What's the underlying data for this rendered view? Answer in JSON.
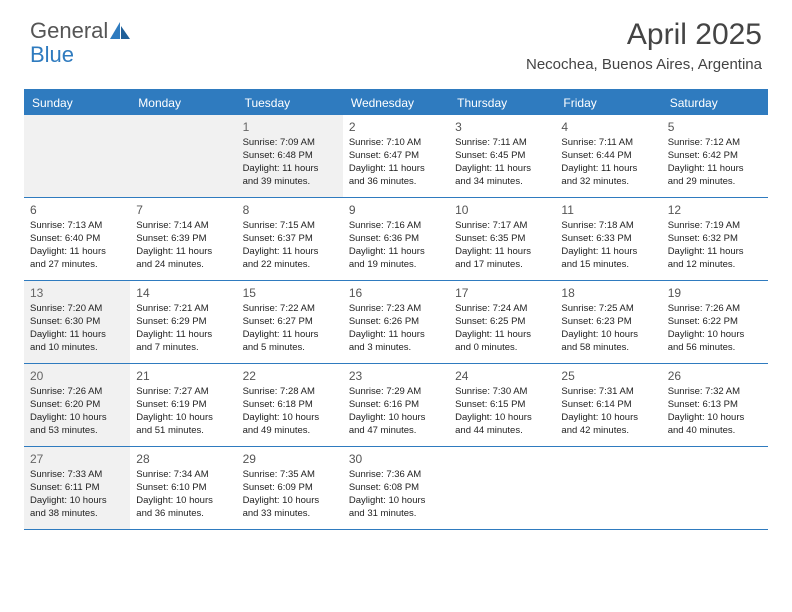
{
  "brand": {
    "part1": "General",
    "part2": "Blue"
  },
  "title": "April 2025",
  "location": "Necochea, Buenos Aires, Argentina",
  "colors": {
    "accent": "#2f7bbf",
    "shaded": "#f1f1f1",
    "text": "#222222",
    "header_text": "#ffffff",
    "background": "#ffffff"
  },
  "day_names": [
    "Sunday",
    "Monday",
    "Tuesday",
    "Wednesday",
    "Thursday",
    "Friday",
    "Saturday"
  ],
  "weeks": [
    [
      {
        "blank": true,
        "shaded": true
      },
      {
        "blank": true,
        "shaded": true
      },
      {
        "n": "1",
        "shaded": true,
        "sunrise": "Sunrise: 7:09 AM",
        "sunset": "Sunset: 6:48 PM",
        "day1": "Daylight: 11 hours",
        "day2": "and 39 minutes."
      },
      {
        "n": "2",
        "shaded": false,
        "sunrise": "Sunrise: 7:10 AM",
        "sunset": "Sunset: 6:47 PM",
        "day1": "Daylight: 11 hours",
        "day2": "and 36 minutes."
      },
      {
        "n": "3",
        "shaded": false,
        "sunrise": "Sunrise: 7:11 AM",
        "sunset": "Sunset: 6:45 PM",
        "day1": "Daylight: 11 hours",
        "day2": "and 34 minutes."
      },
      {
        "n": "4",
        "shaded": false,
        "sunrise": "Sunrise: 7:11 AM",
        "sunset": "Sunset: 6:44 PM",
        "day1": "Daylight: 11 hours",
        "day2": "and 32 minutes."
      },
      {
        "n": "5",
        "shaded": false,
        "sunrise": "Sunrise: 7:12 AM",
        "sunset": "Sunset: 6:42 PM",
        "day1": "Daylight: 11 hours",
        "day2": "and 29 minutes."
      }
    ],
    [
      {
        "n": "6",
        "shaded": false,
        "sunrise": "Sunrise: 7:13 AM",
        "sunset": "Sunset: 6:40 PM",
        "day1": "Daylight: 11 hours",
        "day2": "and 27 minutes."
      },
      {
        "n": "7",
        "shaded": false,
        "sunrise": "Sunrise: 7:14 AM",
        "sunset": "Sunset: 6:39 PM",
        "day1": "Daylight: 11 hours",
        "day2": "and 24 minutes."
      },
      {
        "n": "8",
        "shaded": false,
        "sunrise": "Sunrise: 7:15 AM",
        "sunset": "Sunset: 6:37 PM",
        "day1": "Daylight: 11 hours",
        "day2": "and 22 minutes."
      },
      {
        "n": "9",
        "shaded": false,
        "sunrise": "Sunrise: 7:16 AM",
        "sunset": "Sunset: 6:36 PM",
        "day1": "Daylight: 11 hours",
        "day2": "and 19 minutes."
      },
      {
        "n": "10",
        "shaded": false,
        "sunrise": "Sunrise: 7:17 AM",
        "sunset": "Sunset: 6:35 PM",
        "day1": "Daylight: 11 hours",
        "day2": "and 17 minutes."
      },
      {
        "n": "11",
        "shaded": false,
        "sunrise": "Sunrise: 7:18 AM",
        "sunset": "Sunset: 6:33 PM",
        "day1": "Daylight: 11 hours",
        "day2": "and 15 minutes."
      },
      {
        "n": "12",
        "shaded": false,
        "sunrise": "Sunrise: 7:19 AM",
        "sunset": "Sunset: 6:32 PM",
        "day1": "Daylight: 11 hours",
        "day2": "and 12 minutes."
      }
    ],
    [
      {
        "n": "13",
        "shaded": true,
        "sunrise": "Sunrise: 7:20 AM",
        "sunset": "Sunset: 6:30 PM",
        "day1": "Daylight: 11 hours",
        "day2": "and 10 minutes."
      },
      {
        "n": "14",
        "shaded": false,
        "sunrise": "Sunrise: 7:21 AM",
        "sunset": "Sunset: 6:29 PM",
        "day1": "Daylight: 11 hours",
        "day2": "and 7 minutes."
      },
      {
        "n": "15",
        "shaded": false,
        "sunrise": "Sunrise: 7:22 AM",
        "sunset": "Sunset: 6:27 PM",
        "day1": "Daylight: 11 hours",
        "day2": "and 5 minutes."
      },
      {
        "n": "16",
        "shaded": false,
        "sunrise": "Sunrise: 7:23 AM",
        "sunset": "Sunset: 6:26 PM",
        "day1": "Daylight: 11 hours",
        "day2": "and 3 minutes."
      },
      {
        "n": "17",
        "shaded": false,
        "sunrise": "Sunrise: 7:24 AM",
        "sunset": "Sunset: 6:25 PM",
        "day1": "Daylight: 11 hours",
        "day2": "and 0 minutes."
      },
      {
        "n": "18",
        "shaded": false,
        "sunrise": "Sunrise: 7:25 AM",
        "sunset": "Sunset: 6:23 PM",
        "day1": "Daylight: 10 hours",
        "day2": "and 58 minutes."
      },
      {
        "n": "19",
        "shaded": false,
        "sunrise": "Sunrise: 7:26 AM",
        "sunset": "Sunset: 6:22 PM",
        "day1": "Daylight: 10 hours",
        "day2": "and 56 minutes."
      }
    ],
    [
      {
        "n": "20",
        "shaded": true,
        "sunrise": "Sunrise: 7:26 AM",
        "sunset": "Sunset: 6:20 PM",
        "day1": "Daylight: 10 hours",
        "day2": "and 53 minutes."
      },
      {
        "n": "21",
        "shaded": false,
        "sunrise": "Sunrise: 7:27 AM",
        "sunset": "Sunset: 6:19 PM",
        "day1": "Daylight: 10 hours",
        "day2": "and 51 minutes."
      },
      {
        "n": "22",
        "shaded": false,
        "sunrise": "Sunrise: 7:28 AM",
        "sunset": "Sunset: 6:18 PM",
        "day1": "Daylight: 10 hours",
        "day2": "and 49 minutes."
      },
      {
        "n": "23",
        "shaded": false,
        "sunrise": "Sunrise: 7:29 AM",
        "sunset": "Sunset: 6:16 PM",
        "day1": "Daylight: 10 hours",
        "day2": "and 47 minutes."
      },
      {
        "n": "24",
        "shaded": false,
        "sunrise": "Sunrise: 7:30 AM",
        "sunset": "Sunset: 6:15 PM",
        "day1": "Daylight: 10 hours",
        "day2": "and 44 minutes."
      },
      {
        "n": "25",
        "shaded": false,
        "sunrise": "Sunrise: 7:31 AM",
        "sunset": "Sunset: 6:14 PM",
        "day1": "Daylight: 10 hours",
        "day2": "and 42 minutes."
      },
      {
        "n": "26",
        "shaded": false,
        "sunrise": "Sunrise: 7:32 AM",
        "sunset": "Sunset: 6:13 PM",
        "day1": "Daylight: 10 hours",
        "day2": "and 40 minutes."
      }
    ],
    [
      {
        "n": "27",
        "shaded": true,
        "sunrise": "Sunrise: 7:33 AM",
        "sunset": "Sunset: 6:11 PM",
        "day1": "Daylight: 10 hours",
        "day2": "and 38 minutes."
      },
      {
        "n": "28",
        "shaded": false,
        "sunrise": "Sunrise: 7:34 AM",
        "sunset": "Sunset: 6:10 PM",
        "day1": "Daylight: 10 hours",
        "day2": "and 36 minutes."
      },
      {
        "n": "29",
        "shaded": false,
        "sunrise": "Sunrise: 7:35 AM",
        "sunset": "Sunset: 6:09 PM",
        "day1": "Daylight: 10 hours",
        "day2": "and 33 minutes."
      },
      {
        "n": "30",
        "shaded": false,
        "sunrise": "Sunrise: 7:36 AM",
        "sunset": "Sunset: 6:08 PM",
        "day1": "Daylight: 10 hours",
        "day2": "and 31 minutes."
      },
      {
        "blank": true,
        "shaded": false
      },
      {
        "blank": true,
        "shaded": false
      },
      {
        "blank": true,
        "shaded": false
      }
    ]
  ]
}
